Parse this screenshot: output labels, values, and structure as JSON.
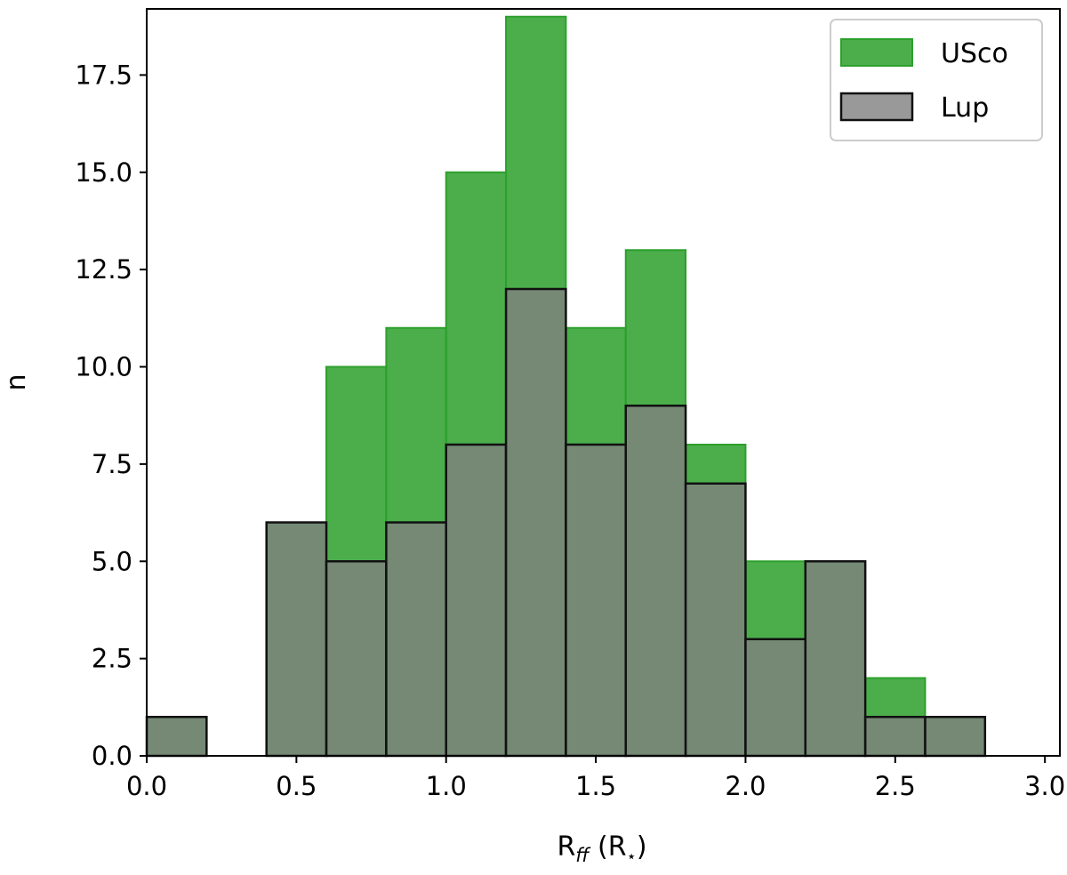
{
  "chart_data": {
    "type": "bar",
    "xlabel": {
      "main": "R",
      "sub": "ff",
      "unit_open": " (R",
      "unit_sub": "⋆",
      "unit_close": ")"
    },
    "ylabel": "n",
    "xlim": [
      0.0,
      3.05
    ],
    "ylim": [
      0,
      19.2
    ],
    "bin_edges": [
      0.0,
      0.2,
      0.4,
      0.6,
      0.8,
      1.0,
      1.2,
      1.4,
      1.6,
      1.8,
      2.0,
      2.2,
      2.4,
      2.6,
      2.8
    ],
    "x_ticks": [
      "0.0",
      "0.5",
      "1.0",
      "1.5",
      "2.0",
      "2.5",
      "3.0"
    ],
    "x_tick_values": [
      0.0,
      0.5,
      1.0,
      1.5,
      2.0,
      2.5,
      3.0
    ],
    "y_ticks": [
      "0.0",
      "2.5",
      "5.0",
      "7.5",
      "10.0",
      "12.5",
      "15.0",
      "17.5"
    ],
    "y_tick_values": [
      0.0,
      2.5,
      5.0,
      7.5,
      10.0,
      12.5,
      15.0,
      17.5
    ],
    "series": [
      {
        "name": "USco",
        "values": [
          1,
          0,
          6,
          10,
          11,
          15,
          19,
          11,
          13,
          8,
          5,
          5,
          2,
          1
        ],
        "color": "#2ca02c",
        "alpha": 0.85
      },
      {
        "name": "Lup",
        "values": [
          1,
          0,
          6,
          5,
          6,
          8,
          12,
          8,
          9,
          7,
          3,
          5,
          1,
          1
        ],
        "color": "#808080",
        "alpha": 0.8
      }
    ],
    "legend": {
      "position": "top-right"
    },
    "grid": false
  }
}
